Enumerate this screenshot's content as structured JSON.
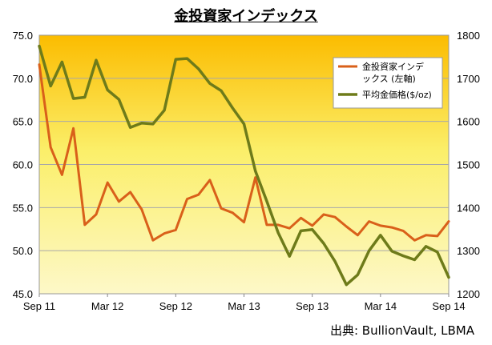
{
  "chart_data": {
    "type": "line",
    "title": "金投資家インデックス",
    "source": "出典: BullionVault, LBMA",
    "x_tick_labels": [
      "Sep 11",
      "Mar 12",
      "Sep 12",
      "Mar 13",
      "Sep 13",
      "Mar 14",
      "Sep 14"
    ],
    "left_axis": {
      "ylim": [
        45,
        75
      ],
      "ticks": [
        "45.0",
        "50.0",
        "55.0",
        "60.0",
        "65.0",
        "70.0",
        "75.0"
      ],
      "tick_values": [
        45,
        50,
        55,
        60,
        65,
        70,
        75
      ]
    },
    "right_axis": {
      "ylim": [
        1200,
        1800
      ],
      "ticks": [
        "1200",
        "1300",
        "1400",
        "1500",
        "1600",
        "1700",
        "1800"
      ],
      "tick_values": [
        1200,
        1300,
        1400,
        1500,
        1600,
        1700,
        1800
      ]
    },
    "grid": true,
    "legend_position": "top-right",
    "background_gradient": [
      "#fbbc00",
      "#fbef6a",
      "#fdf8c8"
    ],
    "x": [
      "2011-09",
      "2011-10",
      "2011-11",
      "2011-12",
      "2012-01",
      "2012-02",
      "2012-03",
      "2012-04",
      "2012-05",
      "2012-06",
      "2012-07",
      "2012-08",
      "2012-09",
      "2012-10",
      "2012-11",
      "2012-12",
      "2013-01",
      "2013-02",
      "2013-03",
      "2013-04",
      "2013-05",
      "2013-06",
      "2013-07",
      "2013-08",
      "2013-09",
      "2013-10",
      "2013-11",
      "2013-12",
      "2014-01",
      "2014-02",
      "2014-03",
      "2014-04",
      "2014-05",
      "2014-06",
      "2014-07",
      "2014-08",
      "2014-09"
    ],
    "series": [
      {
        "name": "金投資家インデックス (左軸)",
        "axis": "left",
        "color": "#d9601a",
        "values": [
          71.6,
          62.0,
          58.8,
          64.2,
          53.0,
          54.2,
          57.9,
          55.7,
          56.8,
          54.8,
          51.2,
          52.0,
          52.4,
          56.0,
          56.5,
          58.2,
          54.9,
          54.4,
          53.3,
          58.5,
          53.0,
          53.0,
          52.6,
          53.8,
          52.9,
          54.2,
          53.9,
          52.8,
          51.8,
          53.4,
          52.9,
          52.7,
          52.3,
          51.2,
          51.8,
          51.7,
          53.4
        ]
      },
      {
        "name": "平均金価格($/oz)",
        "axis": "right",
        "color": "#6e7b1a",
        "values": [
          1775,
          1682,
          1738,
          1653,
          1656,
          1742,
          1673,
          1651,
          1586,
          1596,
          1594,
          1626,
          1744,
          1746,
          1722,
          1688,
          1671,
          1631,
          1594,
          1485,
          1415,
          1342,
          1287,
          1346,
          1349,
          1317,
          1275,
          1221,
          1244,
          1300,
          1336,
          1299,
          1288,
          1279,
          1310,
          1297,
          1238
        ]
      }
    ]
  }
}
